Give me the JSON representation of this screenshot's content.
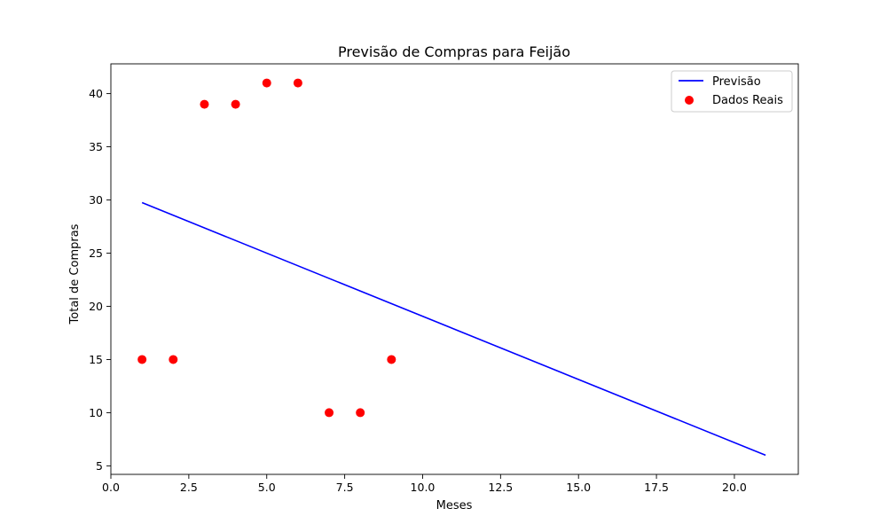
{
  "chart_data": {
    "type": "line",
    "title": "Previsão de Compras para Feijão",
    "xlabel": "Meses",
    "ylabel": "Total de Compras",
    "xlim": [
      0,
      22.05
    ],
    "ylim": [
      4.2,
      42.8
    ],
    "x_ticks": [
      0,
      2.5,
      5,
      7.5,
      10,
      12.5,
      15,
      17.5,
      20
    ],
    "x_tick_labels": [
      "0.0",
      "2.5",
      "5.0",
      "7.5",
      "10.0",
      "12.5",
      "15.0",
      "17.5",
      "20.0"
    ],
    "y_ticks": [
      5,
      10,
      15,
      20,
      25,
      30,
      35,
      40
    ],
    "y_tick_labels": [
      "5",
      "10",
      "15",
      "20",
      "25",
      "30",
      "35",
      "40"
    ],
    "grid": false,
    "legend_position": "top-right",
    "series": [
      {
        "name": "Previsão",
        "kind": "line",
        "color": "#0000ff",
        "x": [
          1,
          21
        ],
        "y": [
          29.75,
          6.0
        ]
      },
      {
        "name": "Dados Reais",
        "kind": "scatter",
        "color": "#ff0000",
        "x": [
          1,
          2,
          3,
          4,
          5,
          6,
          7,
          8,
          9
        ],
        "y": [
          15,
          15,
          39,
          39,
          41,
          41,
          10,
          10,
          15
        ]
      }
    ]
  }
}
